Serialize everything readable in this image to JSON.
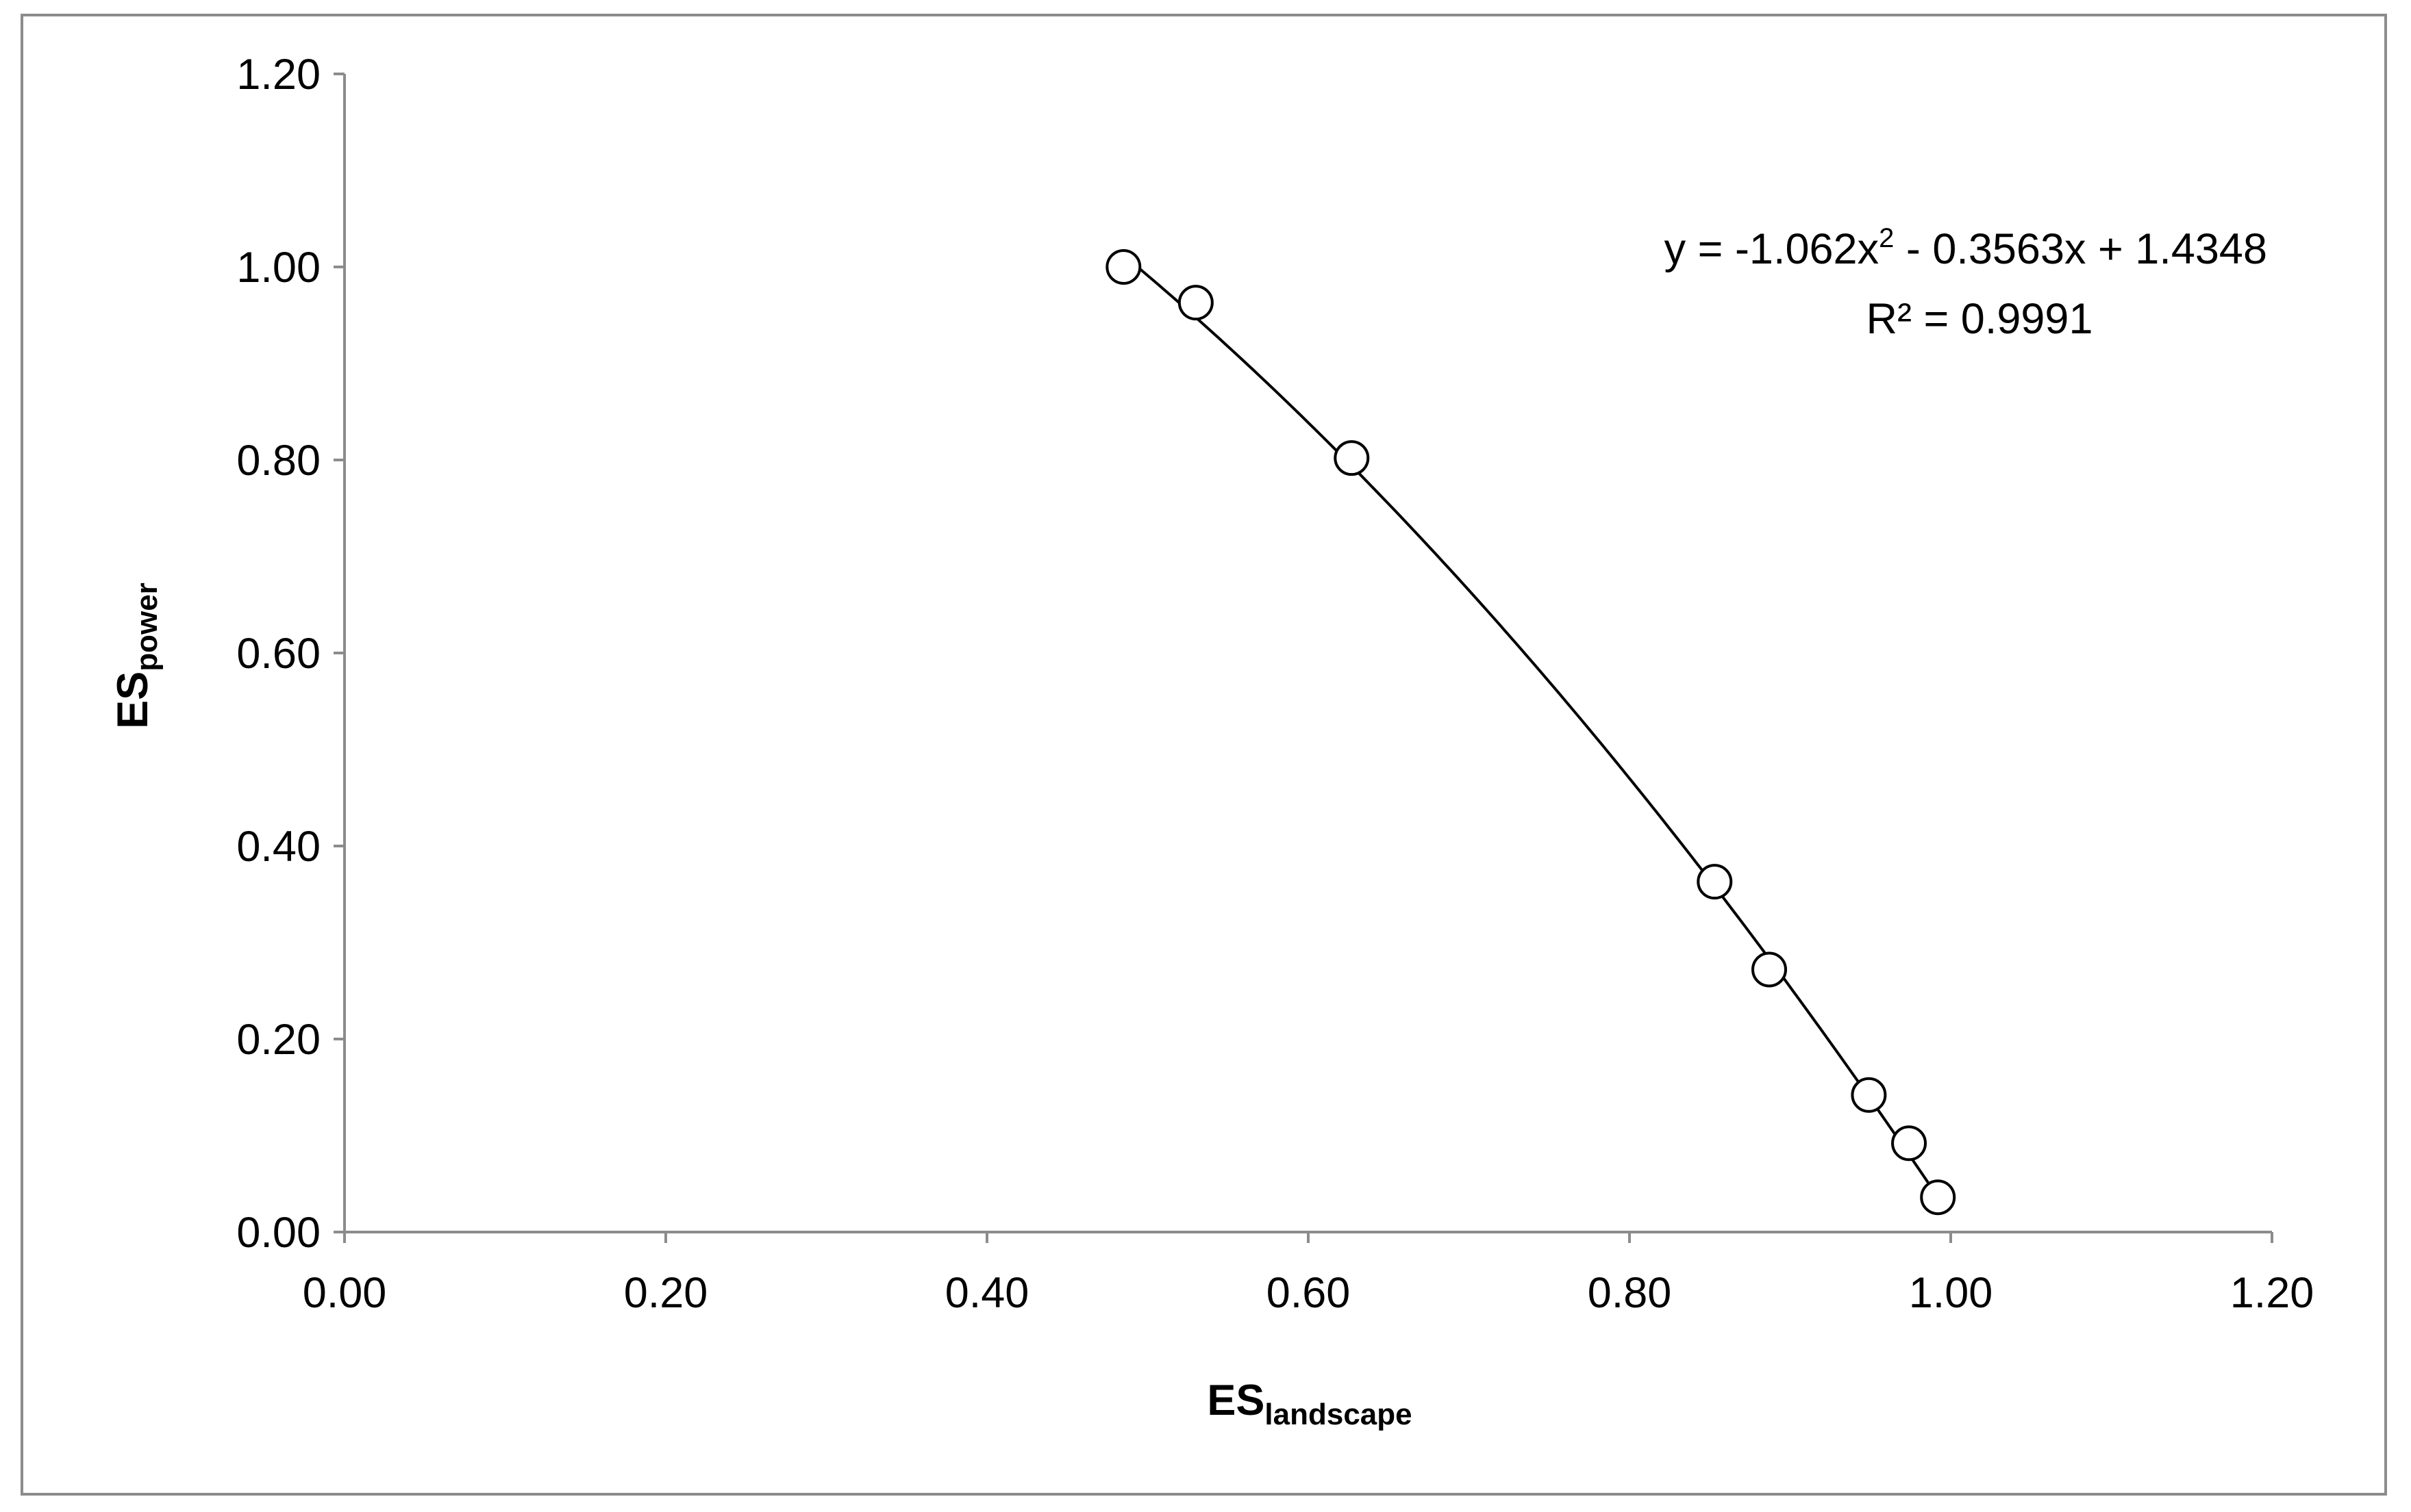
{
  "chart_data": {
    "type": "scatter",
    "title": "",
    "xlabel": {
      "main": "ES",
      "sub": "landscape"
    },
    "ylabel": {
      "main": "ES",
      "sub": "power"
    },
    "xlim": [
      0,
      1.2
    ],
    "ylim": [
      0,
      1.2
    ],
    "x_ticks": [
      "0.00",
      "0.20",
      "0.40",
      "0.60",
      "0.80",
      "1.00",
      "1.20"
    ],
    "y_ticks": [
      "0.00",
      "0.20",
      "0.40",
      "0.60",
      "0.80",
      "1.00",
      "1.20"
    ],
    "grid": false,
    "legend": "none",
    "marker": "open-circle",
    "points": [
      {
        "x": 0.485,
        "y": 1.0
      },
      {
        "x": 0.53,
        "y": 0.963
      },
      {
        "x": 0.627,
        "y": 0.802
      },
      {
        "x": 0.853,
        "y": 0.363
      },
      {
        "x": 0.887,
        "y": 0.272
      },
      {
        "x": 0.949,
        "y": 0.142
      },
      {
        "x": 0.974,
        "y": 0.092
      },
      {
        "x": 0.992,
        "y": 0.036
      }
    ],
    "trendline": {
      "type": "polynomial-2",
      "coefficients": {
        "a": -1.062,
        "b": -0.3563,
        "c": 1.4348
      },
      "x_range": [
        0.485,
        0.995
      ],
      "equation_prefix": "y = -1.062x",
      "equation_exponent": "2",
      "equation_suffix": " - 0.3563x + 1.4348",
      "r2_text": "R² = 0.9991"
    },
    "colors": {
      "axis": "#8c8c8c",
      "marker": "#000000",
      "trendline": "#000000"
    }
  }
}
